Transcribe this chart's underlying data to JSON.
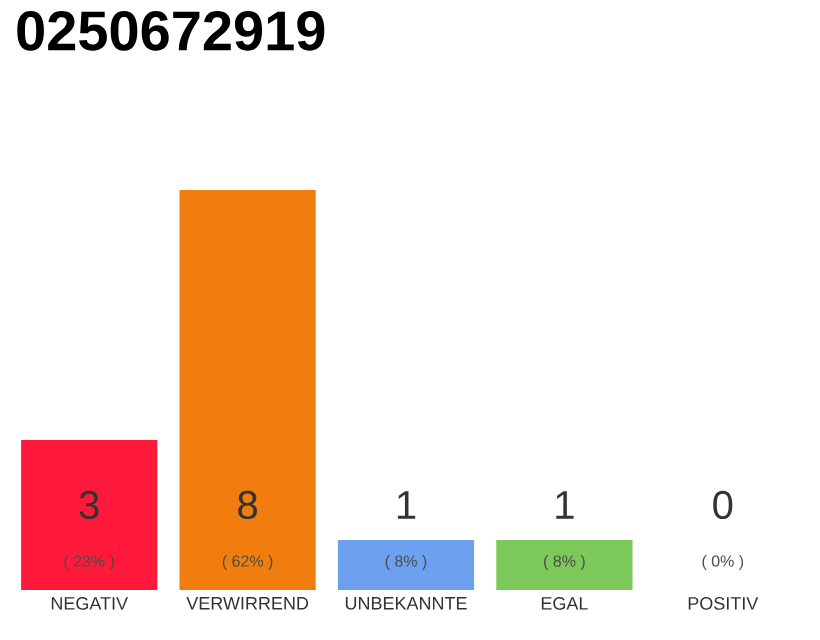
{
  "chart_data": {
    "type": "bar",
    "title": "0250672919",
    "categories": [
      "NEGATIV",
      "VERWIRREND",
      "UNBEKANNTE",
      "EGAL",
      "POSITIV"
    ],
    "values": [
      3,
      8,
      1,
      1,
      0
    ],
    "colors": [
      "#ff1a3c",
      "#f07d0e",
      "#6ea0f0",
      "#7cc95a",
      "#cccccc"
    ],
    "value_labels": [
      "3",
      "8",
      "1",
      "1",
      "0"
    ],
    "annotations": [
      "( 23% )",
      "( 62% )",
      "( 8% )",
      "( 8% )",
      "( 0% )"
    ],
    "tick_labels": "x"
  }
}
